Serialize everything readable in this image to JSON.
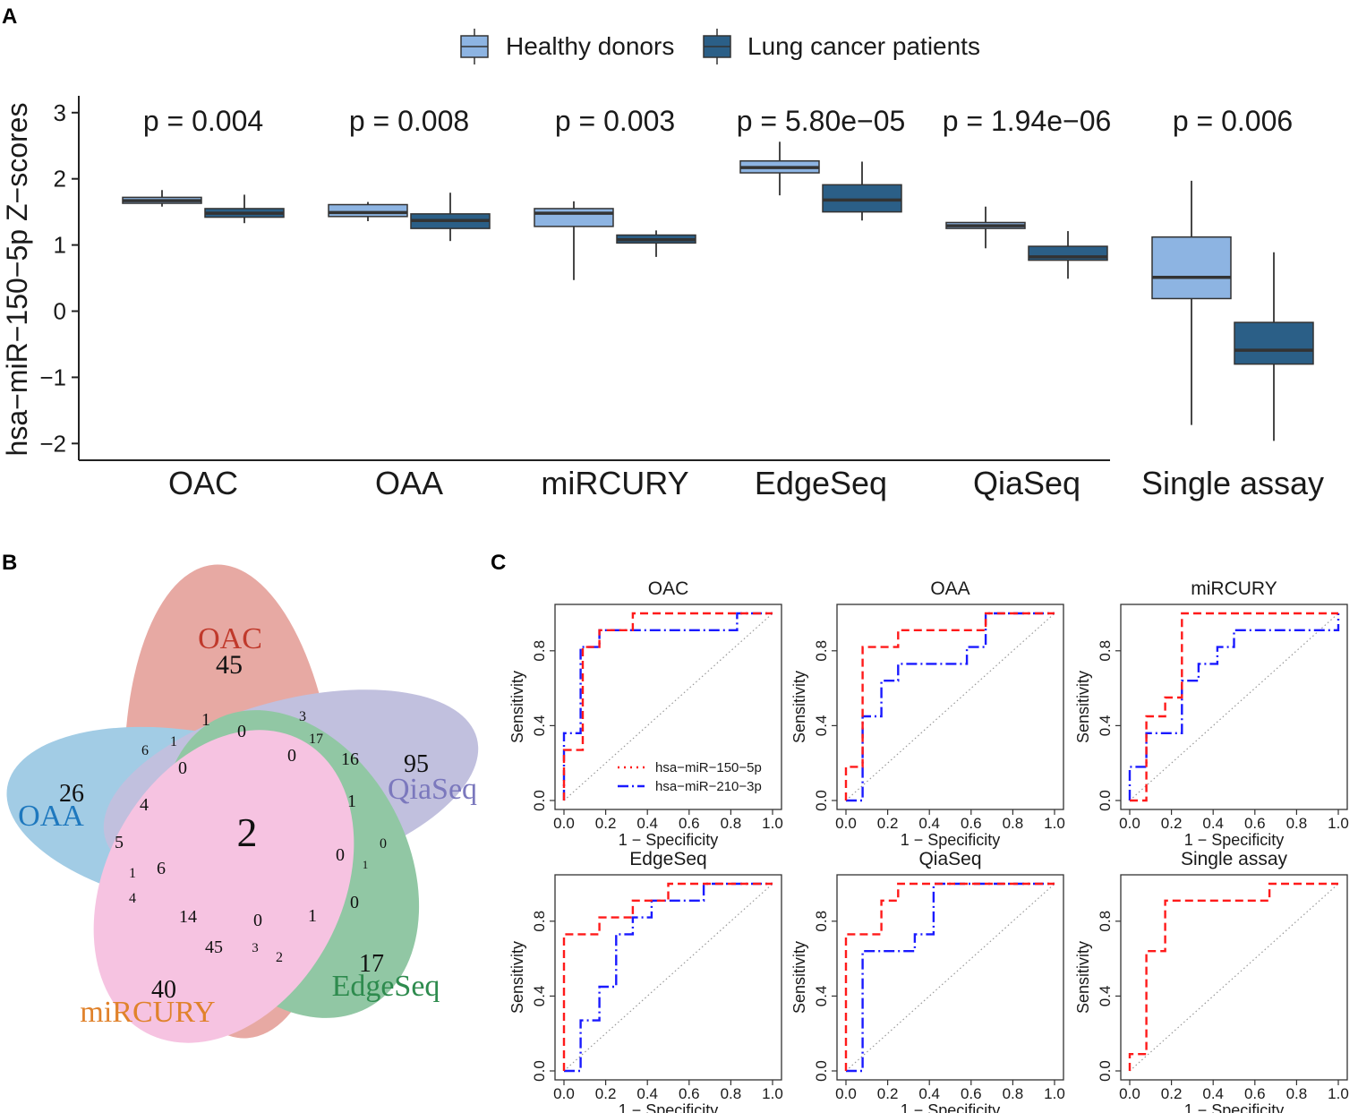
{
  "panel_labels": {
    "a": "A",
    "b": "B",
    "c": "C"
  },
  "colors": {
    "healthy": "#8db4e2",
    "lung": "#2b5f87",
    "red": "#ff1a1a",
    "blue": "#1a1aff"
  },
  "chart_data": [
    {
      "type": "box",
      "legend": [
        {
          "label": "Healthy donors",
          "color": "#8db4e2"
        },
        {
          "label": "Lung cancer patients",
          "color": "#2b5f87"
        }
      ],
      "ylabel": "hsa−miR−150−5p Z−scores",
      "ylim": [
        -2.25,
        3.2
      ],
      "yticks": [
        {
          "value": 3,
          "label": "3"
        },
        {
          "value": 2,
          "label": "2"
        },
        {
          "value": 1,
          "label": "1"
        },
        {
          "value": 0,
          "label": "0"
        },
        {
          "value": -1,
          "label": "−1"
        },
        {
          "value": -2,
          "label": "−2"
        }
      ],
      "categories": [
        "OAC",
        "OAA",
        "miRCURY",
        "EdgeSeq",
        "QiaSeq",
        "Single assay"
      ],
      "p_values": [
        "p = 0.004",
        "p = 0.008",
        "p = 0.003",
        "p = 5.80e−05",
        "p = 1.94e−06",
        "p = 0.006"
      ],
      "series": [
        {
          "name": "Healthy donors",
          "boxes": [
            {
              "min": 1.58,
              "q1": 1.63,
              "median": 1.67,
              "q3": 1.72,
              "max": 1.83
            },
            {
              "min": 1.36,
              "q1": 1.43,
              "median": 1.49,
              "q3": 1.61,
              "max": 1.65
            },
            {
              "min": 0.47,
              "q1": 1.28,
              "median": 1.48,
              "q3": 1.55,
              "max": 1.66
            },
            {
              "min": 1.75,
              "q1": 2.09,
              "median": 2.17,
              "q3": 2.27,
              "max": 2.56
            },
            {
              "min": 0.95,
              "q1": 1.25,
              "median": 1.29,
              "q3": 1.34,
              "max": 1.58
            },
            {
              "min": -1.72,
              "q1": 0.19,
              "median": 0.51,
              "q3": 1.12,
              "max": 1.97
            }
          ]
        },
        {
          "name": "Lung cancer patients",
          "boxes": [
            {
              "min": 1.33,
              "q1": 1.42,
              "median": 1.48,
              "q3": 1.55,
              "max": 1.76
            },
            {
              "min": 1.06,
              "q1": 1.25,
              "median": 1.37,
              "q3": 1.47,
              "max": 1.79
            },
            {
              "min": 0.82,
              "q1": 1.03,
              "median": 1.08,
              "q3": 1.15,
              "max": 1.22
            },
            {
              "min": 1.37,
              "q1": 1.5,
              "median": 1.68,
              "q3": 1.91,
              "max": 2.26
            },
            {
              "min": 0.49,
              "q1": 0.77,
              "median": 0.82,
              "q3": 0.98,
              "max": 1.21
            },
            {
              "min": -1.96,
              "q1": -0.8,
              "median": -0.59,
              "q3": -0.17,
              "max": 0.89
            }
          ]
        }
      ]
    },
    {
      "type": "venn",
      "sets": [
        {
          "label": "OAC",
          "color": "#c0392b",
          "fill": "#d9756c"
        },
        {
          "label": "OAA",
          "color": "#1e78be",
          "fill": "#6aaed6"
        },
        {
          "label": "QiaSeq",
          "color": "#7b78bd",
          "fill": "#9c9acb"
        },
        {
          "label": "EdgeSeq",
          "color": "#2e8b4e",
          "fill": "#4fa66e"
        },
        {
          "label": "miRCURY",
          "color": "#e0822b",
          "fill": "#f29fcf"
        }
      ],
      "counts": [
        "45",
        "26",
        "95",
        "17",
        "40",
        "2",
        "1",
        "3",
        "17",
        "16",
        "6",
        "1",
        "0",
        "0",
        "0",
        "4",
        "5",
        "1",
        "1",
        "0",
        "6",
        "0",
        "1",
        "4",
        "14",
        "0",
        "1",
        "0",
        "45",
        "3",
        "2"
      ]
    },
    {
      "type": "roc",
      "xlabel": "1 − Specificity",
      "ylabel": "Sensitivity",
      "xticks": [
        "0.0",
        "0.2",
        "0.4",
        "0.6",
        "0.8",
        "1.0"
      ],
      "yticks": [
        "0.0",
        "0.4",
        "0.8"
      ],
      "legend": [
        "hsa−miR−150−5p",
        "hsa−miR−210−3p"
      ],
      "panels": [
        {
          "title": "OAC",
          "red": [
            [
              0,
              0
            ],
            [
              0,
              0.27
            ],
            [
              0.09,
              0.27
            ],
            [
              0.09,
              0.82
            ],
            [
              0.17,
              0.82
            ],
            [
              0.17,
              0.91
            ],
            [
              0.33,
              0.91
            ],
            [
              0.33,
              1
            ],
            [
              1,
              1
            ]
          ],
          "blue": [
            [
              0,
              0
            ],
            [
              0,
              0.36
            ],
            [
              0.08,
              0.36
            ],
            [
              0.08,
              0.82
            ],
            [
              0.17,
              0.82
            ],
            [
              0.17,
              0.91
            ],
            [
              0.83,
              0.91
            ],
            [
              0.83,
              1
            ],
            [
              1,
              1
            ]
          ]
        },
        {
          "title": "OAA",
          "red": [
            [
              0,
              0
            ],
            [
              0,
              0.18
            ],
            [
              0.08,
              0.18
            ],
            [
              0.08,
              0.82
            ],
            [
              0.25,
              0.82
            ],
            [
              0.25,
              0.91
            ],
            [
              0.67,
              0.91
            ],
            [
              0.67,
              1
            ],
            [
              1,
              1
            ]
          ],
          "blue": [
            [
              0,
              0
            ],
            [
              0.08,
              0
            ],
            [
              0.08,
              0.45
            ],
            [
              0.17,
              0.45
            ],
            [
              0.17,
              0.64
            ],
            [
              0.25,
              0.64
            ],
            [
              0.25,
              0.73
            ],
            [
              0.58,
              0.73
            ],
            [
              0.58,
              0.82
            ],
            [
              0.67,
              0.82
            ],
            [
              0.67,
              1
            ],
            [
              1,
              1
            ]
          ]
        },
        {
          "title": "miRCURY",
          "red": [
            [
              0,
              0
            ],
            [
              0.08,
              0
            ],
            [
              0.08,
              0.45
            ],
            [
              0.17,
              0.45
            ],
            [
              0.17,
              0.55
            ],
            [
              0.25,
              0.55
            ],
            [
              0.25,
              1
            ],
            [
              1,
              1
            ]
          ],
          "blue": [
            [
              0,
              0
            ],
            [
              0,
              0.18
            ],
            [
              0.08,
              0.18
            ],
            [
              0.08,
              0.36
            ],
            [
              0.17,
              0.36
            ],
            [
              0.17,
              0.36
            ],
            [
              0.25,
              0.36
            ],
            [
              0.25,
              0.64
            ],
            [
              0.33,
              0.64
            ],
            [
              0.33,
              0.73
            ],
            [
              0.42,
              0.73
            ],
            [
              0.42,
              0.82
            ],
            [
              0.5,
              0.82
            ],
            [
              0.5,
              0.91
            ],
            [
              0.92,
              0.91
            ],
            [
              0.92,
              0.91
            ],
            [
              1,
              0.91
            ],
            [
              1,
              1
            ]
          ]
        },
        {
          "title": "EdgeSeq",
          "red": [
            [
              0,
              0
            ],
            [
              0,
              0.73
            ],
            [
              0.17,
              0.73
            ],
            [
              0.17,
              0.82
            ],
            [
              0.33,
              0.82
            ],
            [
              0.33,
              0.91
            ],
            [
              0.5,
              0.91
            ],
            [
              0.5,
              1
            ],
            [
              1,
              1
            ]
          ],
          "blue": [
            [
              0,
              0
            ],
            [
              0.08,
              0
            ],
            [
              0.08,
              0.27
            ],
            [
              0.17,
              0.27
            ],
            [
              0.17,
              0.45
            ],
            [
              0.25,
              0.45
            ],
            [
              0.25,
              0.73
            ],
            [
              0.33,
              0.73
            ],
            [
              0.33,
              0.82
            ],
            [
              0.42,
              0.82
            ],
            [
              0.42,
              0.91
            ],
            [
              0.67,
              0.91
            ],
            [
              0.67,
              1
            ],
            [
              1,
              1
            ]
          ]
        },
        {
          "title": "QiaSeq",
          "red": [
            [
              0,
              0
            ],
            [
              0,
              0.73
            ],
            [
              0.17,
              0.73
            ],
            [
              0.17,
              0.91
            ],
            [
              0.25,
              0.91
            ],
            [
              0.25,
              1
            ],
            [
              1,
              1
            ]
          ],
          "blue": [
            [
              0,
              0
            ],
            [
              0.08,
              0
            ],
            [
              0.08,
              0.64
            ],
            [
              0.33,
              0.64
            ],
            [
              0.33,
              0.73
            ],
            [
              0.42,
              0.73
            ],
            [
              0.42,
              1
            ],
            [
              1,
              1
            ]
          ]
        },
        {
          "title": "Single assay",
          "red": [
            [
              0,
              0
            ],
            [
              0,
              0.09
            ],
            [
              0.08,
              0.09
            ],
            [
              0.08,
              0.64
            ],
            [
              0.17,
              0.64
            ],
            [
              0.17,
              0.91
            ],
            [
              0.67,
              0.91
            ],
            [
              0.67,
              1
            ],
            [
              1,
              1
            ]
          ],
          "blue": []
        }
      ]
    }
  ]
}
